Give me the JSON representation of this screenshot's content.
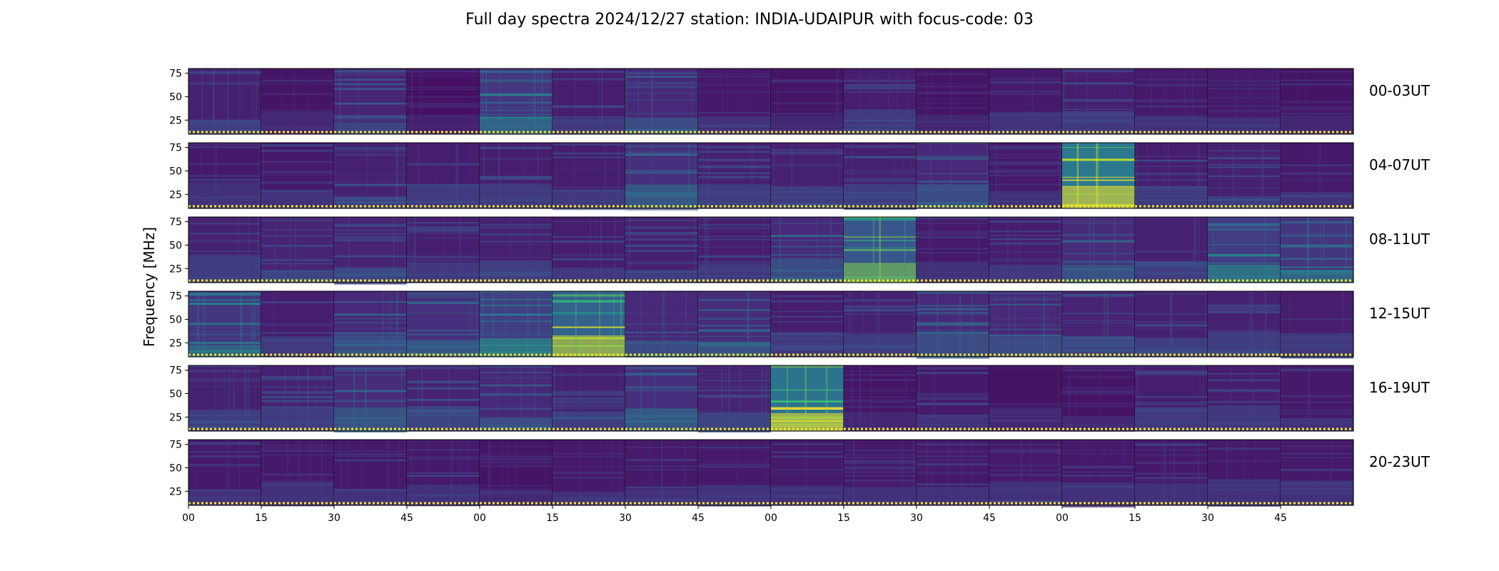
{
  "chart_data": {
    "type": "heatmap",
    "title": "Full day spectra 2024/12/27 station: INDIA-UDAIPUR with focus-code: 03",
    "ylabel": "Frequency [MHz]",
    "xlabel": "",
    "y_ticks": [
      25,
      50,
      75
    ],
    "y_range": [
      10,
      80
    ],
    "x_tick_labels": [
      "00",
      "15",
      "30",
      "45",
      "00",
      "15",
      "30",
      "45",
      "00",
      "15",
      "30",
      "45",
      "00",
      "15",
      "30",
      "45"
    ],
    "colormap": "viridis",
    "colormap_stops": [
      "#440154",
      "#482878",
      "#3e4989",
      "#31688e",
      "#26828e",
      "#1f9e89",
      "#35b779",
      "#6ece58",
      "#b5de2b",
      "#fde725"
    ],
    "marker_color": "#f5e52a",
    "rows": [
      {
        "label": "00-03UT",
        "intensity": [
          0.2,
          0.12,
          0.22,
          0.1,
          0.35,
          0.18,
          0.25,
          0.15,
          0.12,
          0.18,
          0.12,
          0.15,
          0.18,
          0.15,
          0.15,
          0.12
        ]
      },
      {
        "label": "04-07UT",
        "intensity": [
          0.15,
          0.15,
          0.2,
          0.18,
          0.18,
          0.18,
          0.3,
          0.2,
          0.2,
          0.2,
          0.25,
          0.15,
          0.9,
          0.18,
          0.2,
          0.15
        ]
      },
      {
        "label": "08-11UT",
        "intensity": [
          0.2,
          0.22,
          0.22,
          0.18,
          0.2,
          0.18,
          0.2,
          0.18,
          0.25,
          0.6,
          0.15,
          0.18,
          0.28,
          0.2,
          0.4,
          0.35
        ]
      },
      {
        "label": "12-15UT",
        "intensity": [
          0.35,
          0.18,
          0.25,
          0.3,
          0.42,
          0.7,
          0.25,
          0.28,
          0.18,
          0.2,
          0.25,
          0.25,
          0.22,
          0.2,
          0.2,
          0.18
        ]
      },
      {
        "label": "16-19UT",
        "intensity": [
          0.2,
          0.2,
          0.28,
          0.22,
          0.25,
          0.2,
          0.3,
          0.22,
          0.85,
          0.12,
          0.15,
          0.12,
          0.12,
          0.18,
          0.18,
          0.15
        ]
      },
      {
        "label": "20-23UT",
        "intensity": [
          0.15,
          0.15,
          0.15,
          0.15,
          0.12,
          0.15,
          0.15,
          0.15,
          0.15,
          0.15,
          0.15,
          0.15,
          0.15,
          0.15,
          0.15,
          0.15
        ]
      }
    ]
  }
}
